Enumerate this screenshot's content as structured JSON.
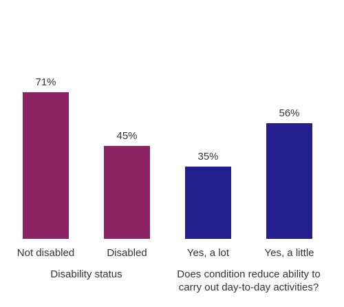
{
  "chart_data": {
    "type": "bar",
    "categories": [
      "Not disabled",
      "Disabled",
      "Yes, a lot",
      "Yes, a little"
    ],
    "values": [
      71,
      45,
      35,
      56
    ],
    "value_labels": [
      "71%",
      "45%",
      "35%",
      "56%"
    ],
    "bar_colors": [
      "#8c2464",
      "#8c2464",
      "#231f8c",
      "#231f8c"
    ],
    "groups": [
      {
        "lines": [
          "Disability status"
        ],
        "categories": [
          0,
          1
        ]
      },
      {
        "lines": [
          "Does condition reduce ability to",
          "carry out day-to-day activities?"
        ],
        "categories": [
          2,
          3
        ]
      }
    ],
    "ylim": [
      0,
      100
    ],
    "grid": false,
    "legend": "none",
    "title": "",
    "xlabel": "",
    "ylabel": ""
  }
}
